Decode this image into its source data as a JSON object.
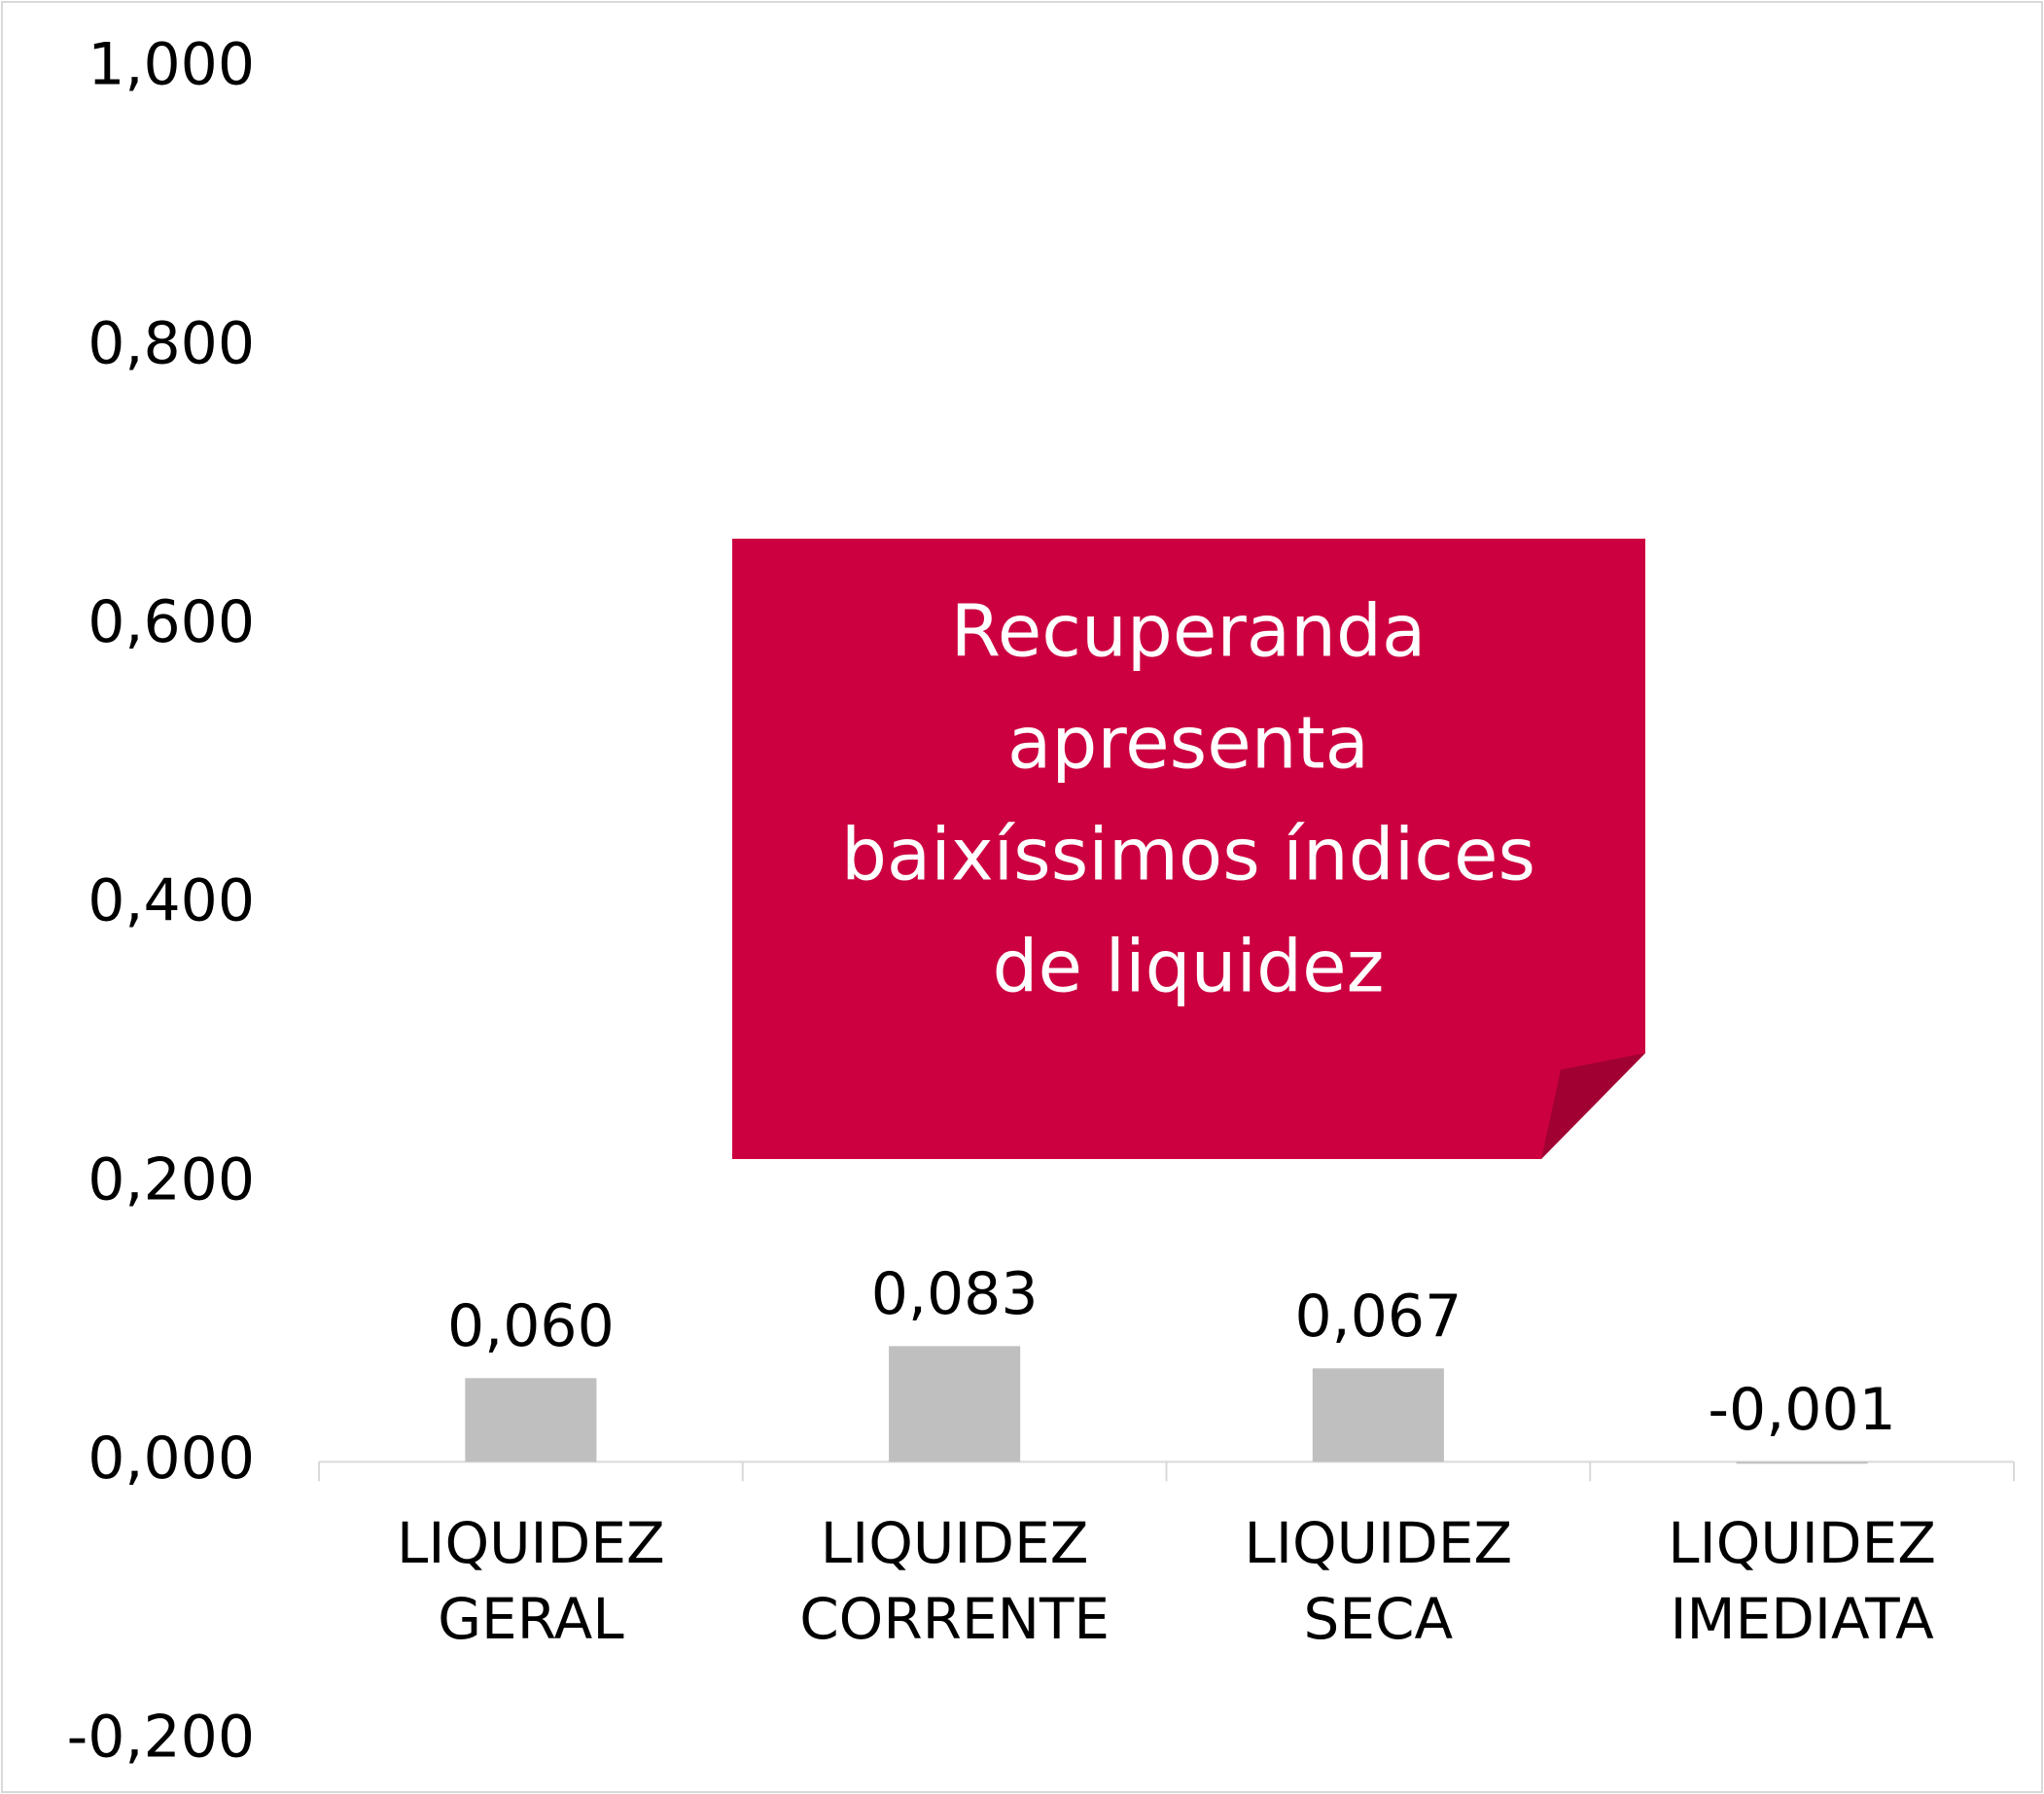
{
  "chart_data": {
    "type": "bar",
    "categories": [
      [
        "LIQUIDEZ",
        "GERAL"
      ],
      [
        "LIQUIDEZ",
        "CORRENTE"
      ],
      [
        "LIQUIDEZ",
        "SECA"
      ],
      [
        "LIQUIDEZ",
        "IMEDIATA"
      ]
    ],
    "values": [
      0.06,
      0.083,
      0.067,
      -0.001
    ],
    "value_labels": [
      "0,060",
      "0,083",
      "0,067",
      "-0,001"
    ],
    "color": "#bfbfbf",
    "ylim": [
      -0.2,
      1.0
    ],
    "yticks": [
      {
        "value": -0.2,
        "label": "-0,200"
      },
      {
        "value": 0,
        "label": "0,000"
      },
      {
        "value": 0.2,
        "label": "0,200"
      },
      {
        "value": 0.4,
        "label": "0,400"
      },
      {
        "value": 0.6,
        "label": "0,600"
      },
      {
        "value": 0.8,
        "label": "0,800"
      },
      {
        "value": 1.0,
        "label": "1,000"
      }
    ],
    "grid": false,
    "annotation": {
      "lines": [
        "Recuperanda",
        "apresenta",
        "baixíssimos índices",
        "de liquidez"
      ],
      "color": "#cc0040"
    }
  }
}
